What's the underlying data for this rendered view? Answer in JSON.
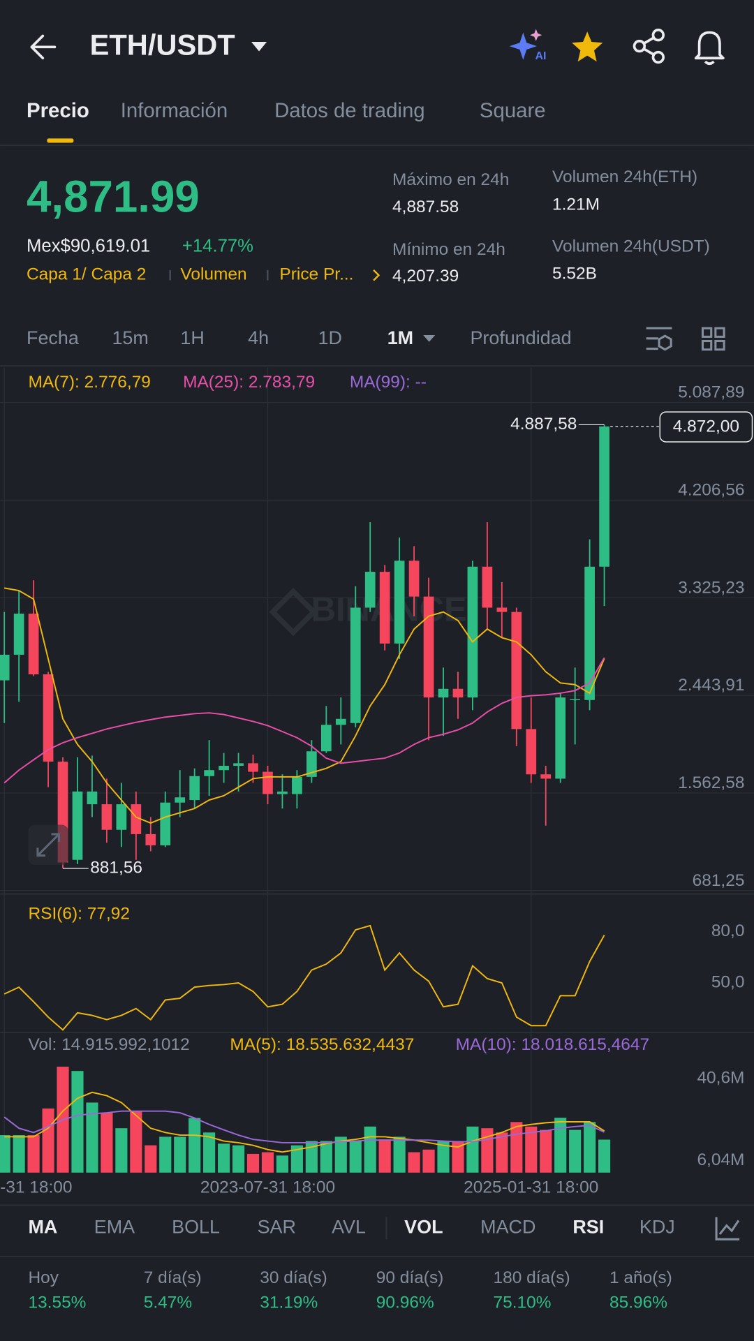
{
  "header": {
    "title": "ETH/USDT"
  },
  "tabs": [
    "Precio",
    "Información",
    "Datos de trading",
    "Square"
  ],
  "ticker": {
    "price": "4,871.99",
    "fiat": "Mex$90,619.01",
    "change": "+14.77%",
    "tags": [
      "Capa 1/ Capa 2",
      "Volumen",
      "Price Pr..."
    ],
    "stats": [
      {
        "label": "Máximo en 24h",
        "value": "4,887.58"
      },
      {
        "label": "Mínimo en 24h",
        "value": "4,207.39"
      },
      {
        "label": "Volumen 24h(ETH)",
        "value": "1.21M"
      },
      {
        "label": "Volumen 24h(USDT)",
        "value": "5.52B"
      }
    ]
  },
  "intervals": [
    "Fecha",
    "15m",
    "1H",
    "4h",
    "1D",
    "1M",
    "Profundidad"
  ],
  "indicators": [
    "MA",
    "EMA",
    "BOLL",
    "SAR",
    "AVL",
    "VOL",
    "MACD",
    "RSI",
    "KDJ"
  ],
  "performance": [
    {
      "label": "Hoy",
      "value": "13.55%"
    },
    {
      "label": "7 día(s)",
      "value": "5.47%"
    },
    {
      "label": "30 día(s)",
      "value": "31.19%"
    },
    {
      "label": "90 día(s)",
      "value": "90.96%"
    },
    {
      "label": "180 día(s)",
      "value": "75.10%"
    },
    {
      "label": "1 año(s)",
      "value": "85.96%"
    }
  ],
  "chart_data": [
    {
      "type": "candlestick",
      "watermark": "BINANCE",
      "up_color": "#2ebd85",
      "down_color": "#f6465d",
      "open": [
        2580,
        2811,
        3182,
        2634,
        1846,
        959,
        1461,
        1461,
        1230,
        1461,
        1191,
        1090,
        1476,
        1499,
        1715,
        1769,
        1808,
        1831,
        1754,
        1553,
        1553,
        1708,
        1939,
        2178,
        2194,
        3236,
        3560,
        2912,
        3660,
        3336,
        2425,
        2503,
        2425,
        3606,
        3236,
        3197,
        2140,
        1731,
        1692,
        2402,
        2402,
        3606
      ],
      "high": [
        3197,
        3390,
        3483,
        2657,
        1885,
        1885,
        1900,
        1692,
        1654,
        1576,
        1345,
        1576,
        1769,
        1785,
        2040,
        1924,
        1924,
        1908,
        1808,
        1731,
        1769,
        2040,
        2348,
        2425,
        3429,
        4007,
        3622,
        3869,
        3791,
        3506,
        2695,
        2657,
        3660,
        4007,
        3467,
        3236,
        2425,
        1808,
        2464,
        2695,
        3853,
        4887.58
      ],
      "low": [
        2194,
        2387,
        2618,
        1615,
        881.56,
        920,
        1345,
        1114,
        1075,
        959,
        1036,
        1075,
        1345,
        1422,
        1538,
        1654,
        1576,
        1654,
        1461,
        1422,
        1422,
        1654,
        1924,
        2001,
        2155,
        3197,
        2850,
        2773,
        3159,
        2040,
        2078,
        2232,
        2310,
        3043,
        2965,
        1986,
        1654,
        1268,
        1654,
        2001,
        2310,
        3251
      ],
      "close": [
        2811,
        3182,
        2634,
        1846,
        935,
        1576,
        1576,
        1230,
        1461,
        1191,
        1090,
        1476,
        1523,
        1715,
        1769,
        1808,
        1831,
        1754,
        1553,
        1576,
        1708,
        1939,
        2178,
        2232,
        3236,
        3560,
        2912,
        3660,
        3336,
        2425,
        2503,
        2425,
        3606,
        3236,
        3197,
        2140,
        1731,
        1692,
        2425,
        2410,
        3606,
        4872
      ],
      "series": [
        {
          "name": "MA(7): 2.776,79",
          "color": "#f0b90b",
          "values": [
            3413,
            3390,
            3313,
            2773,
            2232,
            2001,
            1846,
            1654,
            1499,
            1345,
            1291,
            1345,
            1384,
            1422,
            1499,
            1538,
            1615,
            1692,
            1708,
            1708,
            1708,
            1746,
            1785,
            1846,
            2078,
            2348,
            2541,
            2811,
            3043,
            3159,
            3197,
            3120,
            2927,
            3043,
            2965,
            2927,
            2811,
            2657,
            2556,
            2541,
            2464,
            2776.79
          ]
        },
        {
          "name": "MA(25): 2.783,79",
          "color": "#e84fa8",
          "values": [
            1654,
            1769,
            1862,
            1954,
            2016,
            2062,
            2101,
            2140,
            2171,
            2201,
            2225,
            2248,
            2263,
            2279,
            2286,
            2271,
            2240,
            2209,
            2171,
            2117,
            2062,
            1985,
            1877,
            1831,
            1846,
            1862,
            1877,
            1924,
            2001,
            2062,
            2093,
            2132,
            2194,
            2294,
            2372,
            2425,
            2441,
            2449,
            2464,
            2487,
            2556,
            2783.79
          ]
        },
        {
          "name": "MA(99): --",
          "color": "#9b6ad9",
          "values": []
        }
      ],
      "ylim": [
        658.2,
        5404.3
      ],
      "yticks": [
        {
          "value": 5087.89,
          "label": "5.087,89"
        },
        {
          "value": 4206.56,
          "label": "4.206,56"
        },
        {
          "value": 3325.23,
          "label": "3.325,23"
        },
        {
          "value": 2443.91,
          "label": "2.443,91"
        },
        {
          "value": 1562.58,
          "label": "1.562,58"
        },
        {
          "value": 681.25,
          "label": "681,25"
        }
      ],
      "annotations": [
        {
          "value": 4887.58,
          "label": "4.887,58"
        },
        {
          "value": 881.56,
          "label": "881,56"
        }
      ],
      "last_price": {
        "value": 4872,
        "label": "4.872,00"
      },
      "grid": true
    },
    {
      "type": "line",
      "series": [
        {
          "name": "RSI(6): 77,92",
          "color": "#f0b90b",
          "values": [
            43.5,
            47.5,
            39,
            30,
            22.5,
            32.5,
            31,
            28.5,
            31,
            35,
            28.5,
            40,
            41,
            47.5,
            48.5,
            49,
            50,
            45,
            36,
            37.5,
            45,
            57.5,
            61,
            67.5,
            81,
            83.5,
            57.5,
            67.5,
            57.5,
            51,
            36,
            37.5,
            60,
            52.5,
            50,
            30,
            25,
            25,
            42.5,
            42.5,
            62.5,
            77.92
          ]
        }
      ],
      "ylim": [
        21.5,
        97.5
      ],
      "yticks": [
        {
          "value": 80,
          "label": "80,0"
        },
        {
          "value": 50,
          "label": "50,0"
        }
      ]
    },
    {
      "type": "bar",
      "title": "Vol: 14.915.992,1012",
      "categories": [
        "-31 18:00",
        null,
        null,
        null,
        null,
        null,
        null,
        null,
        null,
        null,
        null,
        null,
        null,
        null,
        null,
        null,
        null,
        null,
        "2023-07-31 18:00",
        null,
        null,
        null,
        null,
        null,
        null,
        null,
        null,
        null,
        null,
        null,
        null,
        null,
        null,
        null,
        null,
        null,
        "2025-01-31 18:00",
        null,
        null,
        null,
        null,
        null
      ],
      "values": [
        16.8,
        16.8,
        16.8,
        28,
        45.6,
        43.8,
        30.5,
        26.2,
        19.7,
        26.9,
        12.5,
        16.1,
        16.1,
        24,
        17.9,
        13.2,
        12.5,
        8.9,
        9.6,
        8.2,
        12.5,
        14.3,
        14.3,
        16.1,
        14.3,
        20.4,
        15,
        16.1,
        9.6,
        10.7,
        14.3,
        14.3,
        20.4,
        19.7,
        17.9,
        22.3,
        20.4,
        19,
        24.1,
        19,
        22.3,
        14.9
      ],
      "series": [
        {
          "name": "MA(5): 18.535.632,4437",
          "color": "#f0b90b",
          "values": [
            16.1,
            16.1,
            16.1,
            19.7,
            26.9,
            32.3,
            34.8,
            33.4,
            30.5,
            25.1,
            19.7,
            17.9,
            16.8,
            16.8,
            16.1,
            14.3,
            13.6,
            12.5,
            10.7,
            9.7,
            10.7,
            11.8,
            13.2,
            14.3,
            15,
            16.1,
            16.1,
            15.4,
            14.7,
            13.6,
            12.5,
            11.8,
            14.3,
            16.1,
            17.9,
            20.4,
            21.3,
            22,
            22.4,
            22.4,
            22.4,
            18.5356
          ]
        },
        {
          "name": "MA(10): 18.018.615,4647",
          "color": "#9b6ad9",
          "values": [
            24.4,
            19.7,
            17.9,
            20.4,
            23.3,
            25.1,
            25.8,
            26.2,
            26.9,
            26.9,
            26.9,
            26.9,
            26.2,
            24,
            21.3,
            19,
            16.8,
            15,
            14.3,
            13.6,
            13.6,
            13.6,
            13.6,
            14,
            14.3,
            14.7,
            14.7,
            14.7,
            14.7,
            14.7,
            14.3,
            14,
            14,
            15,
            16.1,
            17.2,
            17.9,
            18.6,
            19.7,
            20.4,
            20.9,
            18.0186
          ]
        }
      ],
      "ylim": [
        1,
        48.5
      ],
      "yticks": [
        {
          "value": 40.6,
          "label": "40,6M"
        },
        {
          "value": 6.04,
          "label": "6,04M"
        }
      ]
    }
  ]
}
